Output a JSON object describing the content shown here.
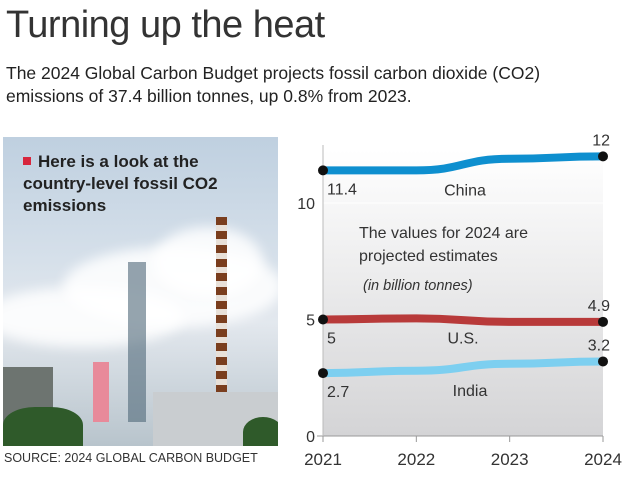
{
  "title": "Turning up the heat",
  "subtitle": "The 2024 Global Carbon Budget projects fossil carbon dioxide (CO2) emissions of 37.4 billion tonnes, up 0.8% from 2023.",
  "note": "Here is a look at the country-level fossil CO2 emissions",
  "source": "SOURCE: 2024 GLOBAL CARBON BUDGET",
  "chart_data": {
    "type": "line",
    "x": [
      "2021",
      "2022",
      "2023",
      "2024"
    ],
    "ylim": [
      0,
      12.5
    ],
    "yticks": [
      "0",
      "5",
      "10"
    ],
    "ytick_values": [
      0,
      5,
      10
    ],
    "annotation": "The values for 2024 are projected estimates",
    "unit": "(in billion tonnes)",
    "grid": true,
    "series": [
      {
        "name": "China",
        "color": "#0e8fcf",
        "values": [
          11.4,
          11.4,
          11.9,
          12
        ],
        "start_label": "11.4",
        "end_label": "12"
      },
      {
        "name": "U.S.",
        "color": "#b83a3a",
        "values": [
          5,
          5.05,
          4.9,
          4.9
        ],
        "start_label": "5",
        "end_label": "4.9"
      },
      {
        "name": "India",
        "color": "#7dcff0",
        "values": [
          2.7,
          2.8,
          3.1,
          3.2
        ],
        "start_label": "2.7",
        "end_label": "3.2"
      }
    ]
  }
}
